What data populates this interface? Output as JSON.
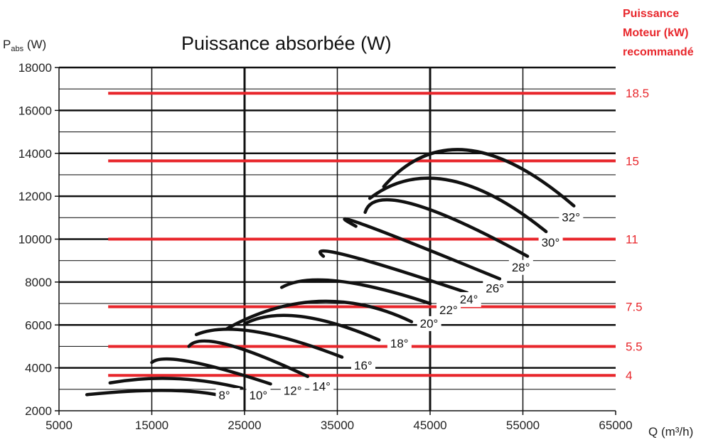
{
  "chart_data": {
    "type": "line",
    "title": "Puissance absorbée (W)",
    "ylabel_main": "P",
    "ylabel_sub": "abs",
    "ylabel_unit": " (W)",
    "xlabel": "Q (m³/h)",
    "xlim": [
      5000,
      65000
    ],
    "ylim": [
      2000,
      18000
    ],
    "xticks": [
      5000,
      15000,
      25000,
      35000,
      45000,
      55000,
      65000
    ],
    "yticks": [
      2000,
      4000,
      6000,
      8000,
      10000,
      12000,
      14000,
      16000,
      18000
    ],
    "grid": true,
    "motor_axis_title": [
      "Puissance",
      "Moteur (kW)",
      "recommandé"
    ],
    "motor_lines": [
      {
        "label": "18.5",
        "y": 16800
      },
      {
        "label": "15",
        "y": 13650
      },
      {
        "label": "11",
        "y": 10000
      },
      {
        "label": "7.5",
        "y": 6850
      },
      {
        "label": "5.5",
        "y": 5000
      },
      {
        "label": "4",
        "y": 3650
      }
    ],
    "series": [
      {
        "name": "8°",
        "x0": 8000,
        "x1": 22000,
        "xpeak": 16000,
        "ypeak": 2950,
        "y0": 2750,
        "y1": 2750
      },
      {
        "name": "10°",
        "x0": 10500,
        "x1": 24700,
        "xpeak": 17500,
        "ypeak": 3500,
        "y0": 3300,
        "y1": 3050
      },
      {
        "name": "12°",
        "x0": 15000,
        "x1": 27800,
        "xpeak": 19000,
        "ypeak": 4300,
        "y0": 4250,
        "y1": 3250
      },
      {
        "name": "14°",
        "x0": 19000,
        "x1": 31800,
        "xpeak": 23000,
        "ypeak": 5100,
        "y0": 5000,
        "y1": 3600
      },
      {
        "name": "16°",
        "x0": 19800,
        "x1": 35500,
        "xpeak": 26000,
        "ypeak": 5700,
        "y0": 5550,
        "y1": 4500
      },
      {
        "name": "18°",
        "x0": 25000,
        "x1": 39500,
        "xpeak": 31000,
        "ypeak": 6400,
        "y0": 6050,
        "y1": 5300
      },
      {
        "name": "20°",
        "x0": 23000,
        "x1": 43000,
        "xpeak": 33000,
        "ypeak": 7100,
        "y0": 5800,
        "y1": 6150
      },
      {
        "name": "22°",
        "x0": 29000,
        "x1": 45000,
        "xpeak": 35000,
        "ypeak": 8050,
        "y0": 7750,
        "y1": 7000
      },
      {
        "name": "24°",
        "x0": 33500,
        "x1": 49000,
        "xpeak": 36000,
        "ypeak": 9250,
        "y0": 9200,
        "y1": 7500
      },
      {
        "name": "26°",
        "x0": 37000,
        "x1": 52500,
        "xpeak": 38000,
        "ypeak": 10650,
        "y0": 10600,
        "y1": 8150
      },
      {
        "name": "28°",
        "x0": 38000,
        "x1": 55500,
        "xpeak": 43000,
        "ypeak": 11650,
        "y0": 11250,
        "y1": 9200
      },
      {
        "name": "30°",
        "x0": 38500,
        "x1": 57500,
        "xpeak": 47000,
        "ypeak": 12750,
        "y0": 11900,
        "y1": 10350
      },
      {
        "name": "32°",
        "x0": 40000,
        "x1": 60500,
        "xpeak": 49000,
        "ypeak": 14150,
        "y0": 12450,
        "y1": 11550
      }
    ],
    "angle_labels": [
      {
        "name": "8°",
        "x": 22200,
        "y": 2530
      },
      {
        "name": "10°",
        "x": 25500,
        "y": 2530
      },
      {
        "name": "12°",
        "x": 29200,
        "y": 2750
      },
      {
        "name": "14°",
        "x": 32300,
        "y": 2940
      },
      {
        "name": "16°",
        "x": 36800,
        "y": 3920
      },
      {
        "name": "18°",
        "x": 40700,
        "y": 4950
      },
      {
        "name": "20°",
        "x": 43900,
        "y": 5880
      },
      {
        "name": "22°",
        "x": 46000,
        "y": 6500
      },
      {
        "name": "24°",
        "x": 48200,
        "y": 7000
      },
      {
        "name": "26°",
        "x": 51000,
        "y": 7520
      },
      {
        "name": "28°",
        "x": 53800,
        "y": 8500
      },
      {
        "name": "30°",
        "x": 57000,
        "y": 9650
      },
      {
        "name": "32°",
        "x": 59200,
        "y": 10820
      }
    ]
  }
}
